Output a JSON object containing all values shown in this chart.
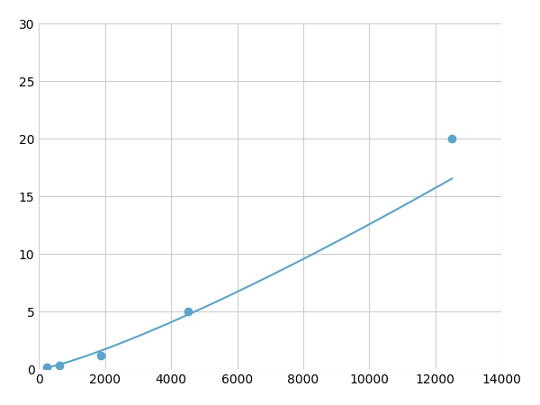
{
  "x_points": [
    250,
    625,
    1875,
    4500,
    12500
  ],
  "y_points": [
    0.2,
    0.3,
    1.2,
    5.0,
    20.0
  ],
  "line_color": "#5ba3c9",
  "marker_color": "#5ba3c9",
  "marker_size": 6,
  "line_width": 1.5,
  "xlim": [
    0,
    14000
  ],
  "ylim": [
    0,
    30
  ],
  "xticks": [
    0,
    2000,
    4000,
    6000,
    8000,
    10000,
    12000,
    14000
  ],
  "yticks": [
    0,
    5,
    10,
    15,
    20,
    25,
    30
  ],
  "grid_color": "#cccccc",
  "background_color": "#ffffff",
  "tick_label_fontsize": 10,
  "power_law_a": 2.4e-07,
  "power_law_b": 1.65
}
